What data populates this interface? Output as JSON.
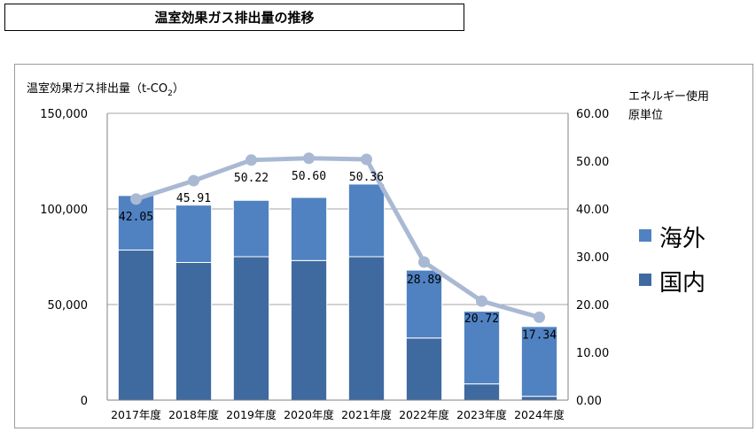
{
  "page_title": "温室効果ガス排出量の推移",
  "chart_data": {
    "type": "bar",
    "stacked": true,
    "categories": [
      "2017年度",
      "2018年度",
      "2019年度",
      "2020年度",
      "2021年度",
      "2022年度",
      "2023年度",
      "2024年度"
    ],
    "ylabel_left_main": "温室効果ガス排出量（t-CO",
    "ylabel_left_sub": "2",
    "ylabel_left_end": "）",
    "ylabel_right_line1": "エネルギー使用",
    "ylabel_right_line2": "原単位",
    "ylim_left": [
      0,
      150000
    ],
    "ylim_right": [
      0,
      60
    ],
    "left_ticks": [
      "0",
      "50,000",
      "100,000",
      "150,000"
    ],
    "right_ticks": [
      "0.00",
      "10.00",
      "20.00",
      "30.00",
      "40.00",
      "50.00",
      "60.00"
    ],
    "grid": true,
    "legend_position": "right",
    "series": [
      {
        "name": "国内",
        "color": "#3f6aa0",
        "values": [
          78500,
          72000,
          75000,
          73000,
          75000,
          32500,
          8500,
          2000
        ]
      },
      {
        "name": "海外",
        "color": "#5082c2",
        "values": [
          28500,
          30000,
          29500,
          33000,
          38000,
          35500,
          38000,
          36500
        ]
      }
    ],
    "line_series": {
      "name": "エネルギー使用原単位",
      "color": "#a9b9d4",
      "values": [
        42.05,
        45.91,
        50.22,
        50.6,
        50.36,
        28.89,
        20.72,
        17.34
      ],
      "labels": [
        "42.05",
        "45.91",
        "50.22",
        "50.60",
        "50.36",
        "28.89",
        "20.72",
        "17.34"
      ]
    }
  }
}
